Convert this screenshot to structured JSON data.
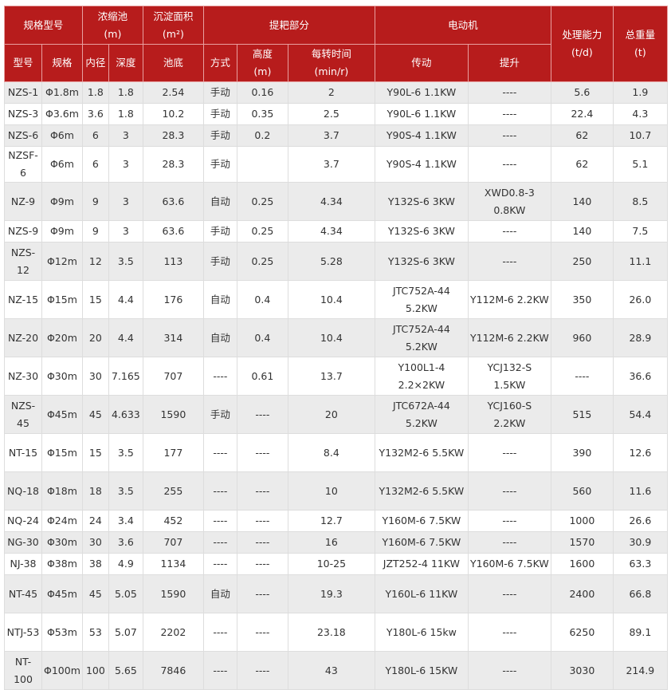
{
  "header": {
    "group": [
      "规格型号",
      "浓缩池\n(m)",
      "沉淀面积\n(m²)",
      "提耙部分",
      "电动机",
      "处理能力\n(t/d)",
      "总重量\n(t)"
    ],
    "sub": [
      "型号",
      "规格",
      "内径",
      "深度",
      "池底",
      "方式",
      "高度\n(m)",
      "每转时间\n(min/r)",
      "传动",
      "提升"
    ]
  },
  "colors": {
    "header_bg": "#b71c1c",
    "row_alt": "#ebebeb"
  },
  "rows": [
    [
      "NZS-1",
      "Φ1.8m",
      "1.8",
      "1.8",
      "2.54",
      "手动",
      "0.16",
      "2",
      "Y90L-6 1.1KW",
      "----",
      "5.6",
      "1.9"
    ],
    [
      "NZS-3",
      "Φ3.6m",
      "3.6",
      "1.8",
      "10.2",
      "手动",
      "0.35",
      "2.5",
      "Y90L-6 1.1KW",
      "----",
      "22.4",
      "4.3"
    ],
    [
      "NZS-6",
      "Φ6m",
      "6",
      "3",
      "28.3",
      "手动",
      "0.2",
      "3.7",
      "Y90S-4 1.1KW",
      "----",
      "62",
      "10.7"
    ],
    [
      "NZSF-6",
      "Φ6m",
      "6",
      "3",
      "28.3",
      "手动",
      "",
      "3.7",
      "Y90S-4 1.1KW",
      "----",
      "62",
      "5.1"
    ],
    [
      "NZ-9",
      "Φ9m",
      "9",
      "3",
      "63.6",
      "自动",
      "0.25",
      "4.34",
      "Y132S-6 3KW",
      "XWD0.8-3 0.8KW",
      "140",
      "8.5"
    ],
    [
      "NZS-9",
      "Φ9m",
      "9",
      "3",
      "63.6",
      "手动",
      "0.25",
      "4.34",
      "Y132S-6 3KW",
      "----",
      "140",
      "7.5"
    ],
    [
      "NZS-12",
      "Φ12m",
      "12",
      "3.5",
      "113",
      "手动",
      "0.25",
      "5.28",
      "Y132S-6 3KW",
      "----",
      "250",
      "11.1"
    ],
    [
      "NZ-15",
      "Φ15m",
      "15",
      "4.4",
      "176",
      "自动",
      "0.4",
      "10.4",
      "JTC752A-44 5.2KW",
      "Y112M-6 2.2KW",
      "350",
      "26.0"
    ],
    [
      "NZ-20",
      "Φ20m",
      "20",
      "4.4",
      "314",
      "自动",
      "0.4",
      "10.4",
      "JTC752A-44 5.2KW",
      "Y112M-6 2.2KW",
      "960",
      "28.9"
    ],
    [
      "NZ-30",
      "Φ30m",
      "30",
      "7.165",
      "707",
      "----",
      "0.61",
      "13.7",
      "Y100L1-4 2.2×2KW",
      "YCJ132-S 1.5KW",
      "----",
      "36.6"
    ],
    [
      "NZS-45",
      "Φ45m",
      "45",
      "4.633",
      "1590",
      "手动",
      "----",
      "20",
      "JTC672A-44 5.2KW",
      "YCJ160-S 2.2KW",
      "515",
      "54.4"
    ],
    [
      "NT-15",
      "Φ15m",
      "15",
      "3.5",
      "177",
      "----",
      "----",
      "8.4",
      "Y132M2-6 5.5KW",
      "----",
      "390",
      "12.6"
    ],
    [
      "NQ-18",
      "Φ18m",
      "18",
      "3.5",
      "255",
      "----",
      "----",
      "10",
      "Y132M2-6 5.5KW",
      "----",
      "560",
      "11.6"
    ],
    [
      "NQ-24",
      "Φ24m",
      "24",
      "3.4",
      "452",
      "----",
      "----",
      "12.7",
      "Y160M-6 7.5KW",
      "----",
      "1000",
      "26.6"
    ],
    [
      "NG-30",
      "Φ30m",
      "30",
      "3.6",
      "707",
      "----",
      "----",
      "16",
      "Y160M-6 7.5KW",
      "----",
      "1570",
      "30.9"
    ],
    [
      "NJ-38",
      "Φ38m",
      "38",
      "4.9",
      "1134",
      "----",
      "----",
      "10-25",
      "JZT252-4 11KW",
      "Y160M-6 7.5KW",
      "1600",
      "63.3"
    ],
    [
      "NT-45",
      "Φ45m",
      "45",
      "5.05",
      "1590",
      "自动",
      "----",
      "19.3",
      "Y160L-6 11KW",
      "----",
      "2400",
      "66.8"
    ],
    [
      "NTJ-53",
      "Φ53m",
      "53",
      "5.07",
      "2202",
      "----",
      "----",
      "23.18",
      "Y180L-6 15kw",
      "----",
      "6250",
      "89.1"
    ],
    [
      "NT-100",
      "Φ100m",
      "100",
      "5.65",
      "7846",
      "----",
      "----",
      "43",
      "Y180L-6 15KW",
      "----",
      "3030",
      "214.9"
    ]
  ]
}
